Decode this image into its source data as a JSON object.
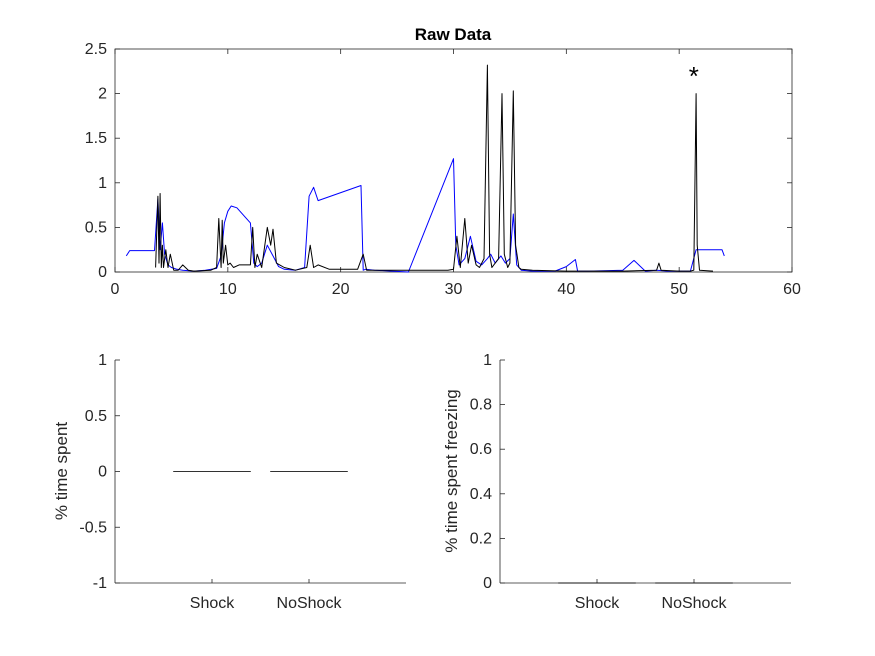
{
  "chart_data": [
    {
      "type": "line",
      "title": "Raw Data",
      "xlabel": "",
      "ylabel": "",
      "xlim": [
        0,
        60
      ],
      "ylim": [
        0,
        2.5
      ],
      "xticks": [
        "0",
        "10",
        "20",
        "30",
        "40",
        "50",
        "60"
      ],
      "yticks": [
        "0",
        "0.5",
        "1",
        "1.5",
        "2",
        "2.5"
      ],
      "grid": false,
      "series": [
        {
          "color": "#0000ff",
          "x": [
            1.0,
            1.3,
            3.5,
            3.8,
            4.0,
            4.2,
            4.4,
            4.7,
            5.0,
            5.5,
            6.0,
            7.0,
            8.0,
            9.0,
            9.4,
            9.7,
            10.0,
            10.3,
            10.8,
            11.5,
            12.0,
            12.3,
            12.6,
            13.0,
            13.5,
            14.0,
            14.5,
            15.0,
            16.0,
            16.8,
            17.2,
            17.6,
            18.0,
            21.8,
            22.0,
            22.2,
            23.0,
            26.0,
            30.0,
            30.2,
            30.5,
            31.0,
            31.5,
            32.0,
            32.5,
            33.0,
            33.3,
            33.7,
            34.2,
            34.6,
            35.0,
            35.3,
            35.6,
            36.0,
            37.0,
            38.0,
            39.0,
            40.0,
            40.8,
            41.0,
            42.0,
            45.0,
            46.0,
            47.0,
            48.0,
            49.0,
            51.0,
            51.5,
            52.0,
            53.8,
            54.0
          ],
          "y": [
            0.18,
            0.24,
            0.24,
            0.82,
            0.25,
            0.55,
            0.2,
            0.08,
            0.05,
            0.03,
            0.02,
            0.01,
            0.02,
            0.04,
            0.18,
            0.55,
            0.68,
            0.74,
            0.72,
            0.62,
            0.55,
            0.1,
            0.06,
            0.1,
            0.3,
            0.18,
            0.06,
            0.03,
            0.02,
            0.05,
            0.85,
            0.95,
            0.8,
            0.97,
            0.02,
            0.03,
            0.02,
            0.0,
            1.27,
            0.3,
            0.08,
            0.15,
            0.4,
            0.12,
            0.08,
            0.15,
            0.2,
            0.1,
            0.18,
            0.1,
            0.15,
            0.65,
            0.08,
            0.02,
            0.01,
            0.01,
            0.01,
            0.06,
            0.14,
            0.01,
            0.01,
            0.02,
            0.13,
            0.01,
            0.02,
            0.01,
            0.01,
            0.25,
            0.25,
            0.25,
            0.18
          ]
        },
        {
          "color": "#000000",
          "x": [
            3.6,
            3.8,
            3.9,
            4.0,
            4.1,
            4.2,
            4.3,
            4.5,
            4.7,
            4.9,
            5.2,
            5.6,
            6.0,
            6.5,
            7.0,
            8.5,
            9.0,
            9.2,
            9.4,
            9.5,
            9.6,
            9.8,
            10.0,
            10.2,
            10.5,
            11.0,
            12.0,
            12.2,
            12.4,
            12.6,
            13.0,
            13.5,
            13.8,
            14.0,
            14.3,
            14.6,
            15.0,
            16.0,
            17.0,
            17.3,
            17.6,
            18.0,
            19.0,
            21.5,
            22.0,
            22.3,
            23.0,
            26.0,
            29.5,
            30.0,
            30.3,
            30.6,
            31.0,
            31.3,
            31.6,
            32.0,
            32.3,
            32.7,
            33.0,
            33.2,
            33.4,
            33.7,
            34.0,
            34.3,
            34.5,
            34.8,
            35.0,
            35.3,
            35.5,
            35.8,
            36.0,
            37.0,
            40.0,
            45.0,
            48.0,
            48.2,
            48.4,
            50.0,
            51.0,
            51.3,
            51.5,
            51.6,
            51.8,
            53.0
          ],
          "y": [
            0.05,
            0.85,
            0.1,
            0.88,
            0.05,
            0.3,
            0.05,
            0.25,
            0.05,
            0.2,
            0.02,
            0.02,
            0.08,
            0.02,
            0.01,
            0.02,
            0.05,
            0.6,
            0.05,
            0.58,
            0.1,
            0.3,
            0.08,
            0.1,
            0.05,
            0.08,
            0.08,
            0.5,
            0.05,
            0.2,
            0.05,
            0.5,
            0.3,
            0.48,
            0.1,
            0.08,
            0.05,
            0.02,
            0.05,
            0.3,
            0.05,
            0.08,
            0.03,
            0.03,
            0.2,
            0.02,
            0.02,
            0.02,
            0.02,
            0.03,
            0.4,
            0.05,
            0.6,
            0.1,
            0.3,
            0.08,
            0.05,
            0.15,
            2.32,
            0.2,
            0.05,
            0.1,
            0.15,
            2.0,
            0.2,
            0.05,
            0.1,
            2.03,
            0.3,
            0.05,
            0.03,
            0.02,
            0.01,
            0.01,
            0.02,
            0.1,
            0.02,
            0.01,
            0.01,
            0.02,
            2.0,
            0.3,
            0.02,
            0.01
          ]
        }
      ],
      "annotations": [
        {
          "text": "*",
          "x": 51.3,
          "y": 2.24
        }
      ]
    },
    {
      "type": "bar",
      "title": "",
      "xlabel": "",
      "ylabel": "% time spent",
      "categories": [
        "Shock",
        "NoShock"
      ],
      "values": [
        0,
        0
      ],
      "ylim": [
        -1,
        1
      ],
      "yticks": [
        "-1",
        "-0.5",
        "0",
        "0.5",
        "1"
      ]
    },
    {
      "type": "bar",
      "title": "",
      "xlabel": "",
      "ylabel": "% time spent freezing",
      "categories": [
        "Shock",
        "NoShock"
      ],
      "values": [
        0,
        0
      ],
      "ylim": [
        0,
        1
      ],
      "yticks": [
        "0",
        "0.2",
        "0.4",
        "0.6",
        "0.8",
        "1"
      ]
    }
  ]
}
